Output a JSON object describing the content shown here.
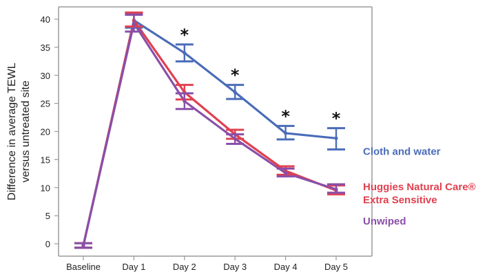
{
  "chart_data": {
    "type": "line",
    "categories": [
      "Baseline",
      "Day 1",
      "Day 2",
      "Day 3",
      "Day 4",
      "Day 5"
    ],
    "ylabel_lines": [
      "Difference in average TEWL",
      "versus untreated site"
    ],
    "xlabel": "",
    "ylim": [
      -2,
      42
    ],
    "yticks": [
      0,
      5,
      10,
      15,
      20,
      25,
      30,
      35,
      40
    ],
    "grid": false,
    "series": [
      {
        "name": "Cloth and water",
        "color": "#4a6cb8",
        "values": [
          -0.3,
          39.8,
          34.0,
          27.0,
          19.7,
          18.8
        ],
        "err_low": [
          -0.7,
          38.5,
          32.5,
          25.8,
          18.6,
          16.8
        ],
        "err_high": [
          0.1,
          41.0,
          35.5,
          28.3,
          21.0,
          20.6
        ]
      },
      {
        "name_lines": [
          "Huggies Natural Care®",
          "Extra Sensitive"
        ],
        "color": "#e0404f",
        "values": [
          -0.3,
          39.8,
          27.0,
          19.5,
          13.0,
          9.5
        ],
        "err_low": [
          -0.7,
          38.7,
          25.7,
          18.7,
          12.3,
          8.8
        ],
        "err_high": [
          0.1,
          41.2,
          28.3,
          20.3,
          13.8,
          10.4
        ]
      },
      {
        "name": "Unwiped",
        "color": "#8a4fa8",
        "values": [
          -0.3,
          39.3,
          25.4,
          18.7,
          12.6,
          9.7
        ],
        "err_low": [
          -0.7,
          37.8,
          24.0,
          17.8,
          12.0,
          9.1
        ],
        "err_high": [
          0.1,
          40.8,
          26.8,
          19.5,
          13.4,
          10.6
        ]
      }
    ],
    "significance_marker": "*",
    "significance_categories": [
      "Day 2",
      "Day 3",
      "Day 4",
      "Day 5"
    ],
    "significance_series": "Cloth and water"
  }
}
